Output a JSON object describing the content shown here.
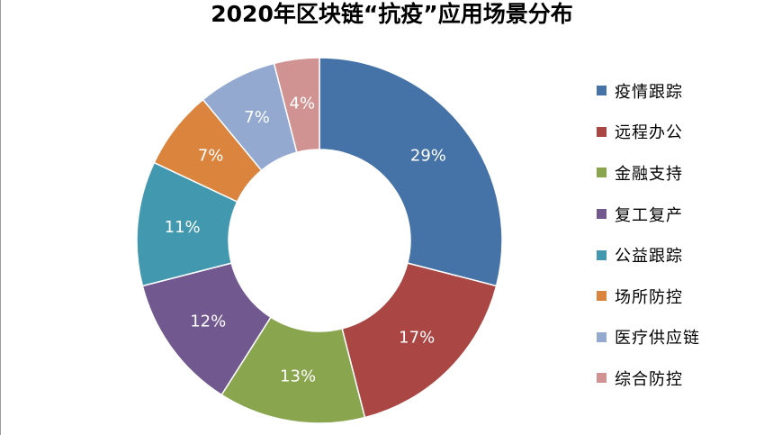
{
  "title": "2020年区块链“抗疫”应用场景分布",
  "chart_data": {
    "type": "pie",
    "variant": "donut",
    "title": "2020年区块链“抗疫”应用场景分布",
    "legend_position": "right",
    "unit": "%",
    "categories": [
      "疫情跟踪",
      "远程办公",
      "金融支持",
      "复工复产",
      "公益跟踪",
      "场所防控",
      "医疗供应链",
      "综合防控"
    ],
    "values": [
      29,
      17,
      13,
      12,
      11,
      7,
      7,
      4
    ],
    "labels": [
      "29%",
      "17%",
      "13%",
      "12%",
      "11%",
      "7%",
      "7%",
      "4%"
    ],
    "colors": [
      "#4572A7",
      "#AA4643",
      "#89A54E",
      "#71588F",
      "#4198AF",
      "#DB843D",
      "#93A9CF",
      "#D19392"
    ]
  }
}
